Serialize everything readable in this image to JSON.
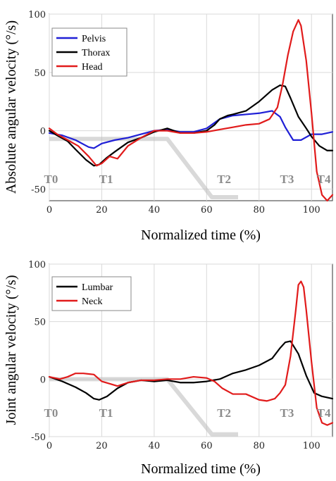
{
  "chart_data": [
    {
      "type": "line",
      "xlabel": "Normalized time (%)",
      "ylabel": "Absolute angular velocity (°/s)",
      "xlim": [
        0,
        108
      ],
      "ylim": [
        -60,
        100
      ],
      "xticks": [
        0,
        20,
        40,
        60,
        80,
        100
      ],
      "yticks": [
        -50,
        0,
        50,
        100
      ],
      "grid": true,
      "legend": "top-left",
      "phase_labels": [
        {
          "label": "T0",
          "x": -2,
          "y": -45
        },
        {
          "label": "T1",
          "x": 19,
          "y": -45
        },
        {
          "label": "T2",
          "x": 64,
          "y": -45
        },
        {
          "label": "T3",
          "x": 88,
          "y": -45
        },
        {
          "label": "T4",
          "x": 102,
          "y": -45
        }
      ],
      "shade": {
        "color": "#bfbfbf",
        "x": [
          0,
          45,
          62,
          72
        ],
        "y": [
          -7,
          -7,
          -57,
          -57
        ]
      },
      "series": [
        {
          "name": "Pelvis",
          "color": "#1f1fd6",
          "x": [
            0,
            5,
            10,
            15,
            17,
            20,
            25,
            30,
            35,
            40,
            45,
            50,
            55,
            60,
            65,
            70,
            75,
            80,
            85,
            88,
            90,
            93,
            96,
            100,
            104,
            108
          ],
          "y": [
            -2,
            -4,
            -8,
            -14,
            -15,
            -11,
            -8,
            -6,
            -3,
            0,
            1,
            -1,
            -1,
            2,
            10,
            13,
            14,
            15,
            17,
            12,
            3,
            -8,
            -8,
            -3,
            -3,
            -1
          ]
        },
        {
          "name": "Thorax",
          "color": "#000000",
          "x": [
            0,
            3,
            7,
            10,
            14,
            17,
            19,
            22,
            25,
            30,
            35,
            40,
            45,
            50,
            55,
            60,
            63,
            65,
            68,
            70,
            75,
            80,
            85,
            88,
            90,
            92,
            95,
            98,
            100,
            103,
            106,
            108
          ],
          "y": [
            0,
            -4,
            -9,
            -16,
            -25,
            -30,
            -29,
            -23,
            -18,
            -10,
            -6,
            -1,
            2,
            -2,
            -2,
            0,
            5,
            10,
            13,
            14,
            17,
            25,
            35,
            39,
            38,
            28,
            12,
            2,
            -5,
            -13,
            -17,
            -17
          ]
        },
        {
          "name": "Head",
          "color": "#e11b1b",
          "x": [
            0,
            3,
            7,
            11,
            15,
            18,
            20,
            23,
            26,
            30,
            35,
            40,
            45,
            50,
            55,
            60,
            65,
            70,
            75,
            80,
            84,
            87,
            89,
            91,
            93,
            95,
            96,
            98,
            100,
            102,
            104,
            106,
            108
          ],
          "y": [
            2,
            -3,
            -8,
            -13,
            -22,
            -30,
            -28,
            -22,
            -24,
            -13,
            -6,
            0,
            0,
            -2,
            -2,
            -1,
            1,
            3,
            5,
            6,
            10,
            20,
            40,
            65,
            85,
            95,
            90,
            60,
            15,
            -35,
            -55,
            -60,
            -55
          ]
        }
      ]
    },
    {
      "type": "line",
      "xlabel": "Normalized time (%)",
      "ylabel": "Joint angular velocity (°/s)",
      "xlim": [
        0,
        108
      ],
      "ylim": [
        -50,
        100
      ],
      "xticks": [
        0,
        20,
        40,
        60,
        80,
        100
      ],
      "yticks": [
        -50,
        0,
        50,
        100
      ],
      "grid": true,
      "legend": "top-left",
      "phase_labels": [
        {
          "label": "T0",
          "x": -2,
          "y": -33
        },
        {
          "label": "T1",
          "x": 19,
          "y": -33
        },
        {
          "label": "T2",
          "x": 64,
          "y": -33
        },
        {
          "label": "T3",
          "x": 88,
          "y": -33
        },
        {
          "label": "T4",
          "x": 102,
          "y": -33
        }
      ],
      "shade": {
        "color": "#bfbfbf",
        "x": [
          0,
          45,
          62,
          72
        ],
        "y": [
          0,
          0,
          -48,
          -48
        ]
      },
      "series": [
        {
          "name": "Lumbar",
          "color": "#000000",
          "x": [
            0,
            5,
            10,
            14,
            17,
            19,
            22,
            26,
            30,
            35,
            40,
            45,
            50,
            55,
            60,
            65,
            70,
            75,
            80,
            85,
            88,
            90,
            92,
            95,
            98,
            101,
            104,
            108
          ],
          "y": [
            2,
            -2,
            -7,
            -12,
            -17,
            -18,
            -15,
            -8,
            -3,
            -1,
            -2,
            -1,
            -3,
            -3,
            -2,
            0,
            5,
            8,
            12,
            18,
            27,
            32,
            33,
            22,
            3,
            -12,
            -15,
            -17
          ]
        },
        {
          "name": "Neck",
          "color": "#e11b1b",
          "x": [
            0,
            4,
            7,
            10,
            13,
            17,
            20,
            23,
            26,
            30,
            35,
            40,
            45,
            50,
            55,
            60,
            63,
            66,
            70,
            75,
            80,
            83,
            86,
            88,
            90,
            92,
            94,
            95,
            96,
            97,
            98,
            100,
            102,
            104,
            106,
            108
          ],
          "y": [
            2,
            0,
            2,
            5,
            5,
            4,
            -2,
            -4,
            -6,
            -3,
            -1,
            -1,
            0,
            0,
            2,
            1,
            -2,
            -8,
            -13,
            -13,
            -18,
            -19,
            -17,
            -12,
            -5,
            20,
            60,
            82,
            85,
            80,
            60,
            15,
            -25,
            -38,
            -40,
            -38
          ]
        }
      ]
    }
  ]
}
